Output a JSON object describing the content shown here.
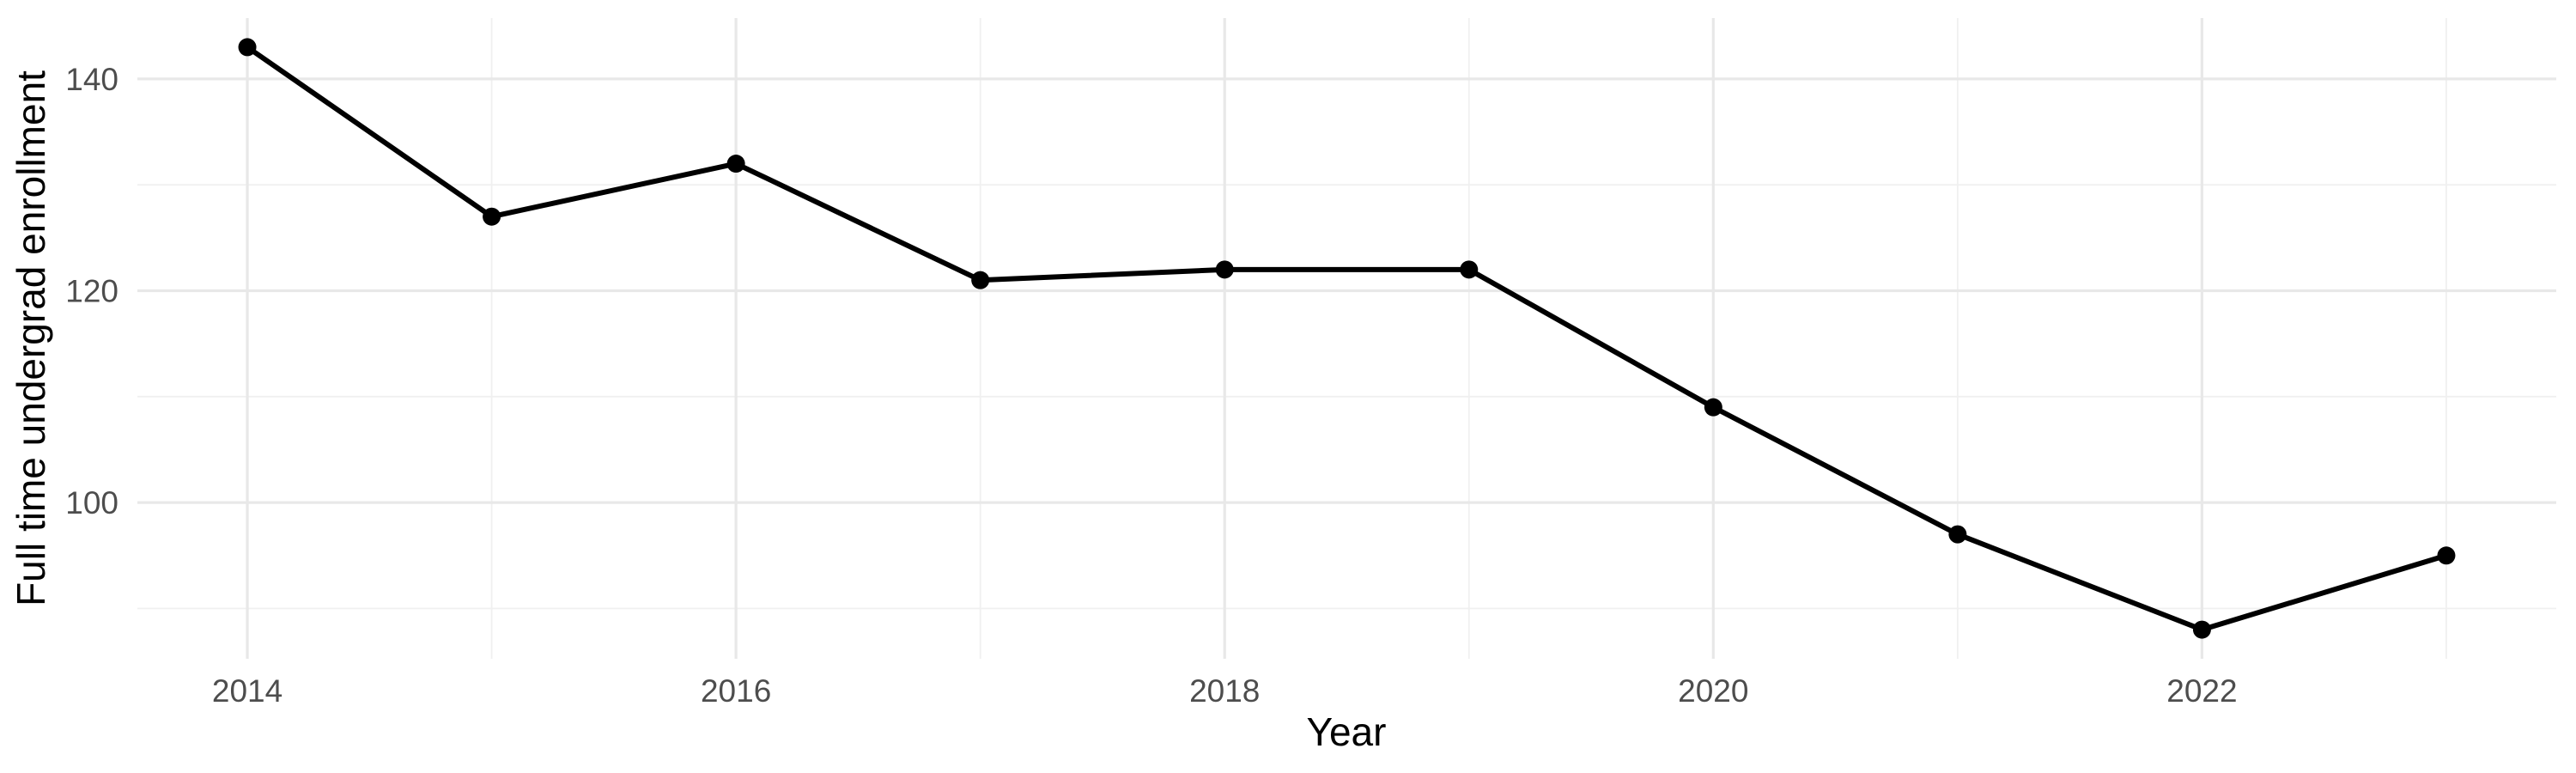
{
  "figure": {
    "background_color": "#ffffff"
  },
  "chart_data": {
    "type": "line",
    "title": "",
    "xlabel": "Year",
    "ylabel": "Full time undergrad enrollment",
    "x": [
      2014,
      2015,
      2016,
      2017,
      2018,
      2019,
      2020,
      2021,
      2022,
      2023
    ],
    "series": [
      {
        "name": "Full time undergrad enrollment",
        "values": [
          143,
          127,
          132,
          121,
          122,
          122,
          109,
          97,
          88,
          95
        ],
        "color": "#000000",
        "marker": "filled-circle"
      }
    ],
    "xlim": [
      2013.55,
      2023.45
    ],
    "ylim": [
      85.25,
      145.75
    ],
    "x_major_ticks": [
      2014,
      2016,
      2018,
      2020,
      2022
    ],
    "x_minor_gridlines": [
      2015,
      2017,
      2019,
      2021,
      2023
    ],
    "y_major_ticks": [
      100,
      120,
      140
    ],
    "y_minor_gridlines": [
      90,
      110,
      130
    ],
    "grid": "on",
    "legend": "none",
    "style": {
      "axis_text_color": "#4d4d4d",
      "axis_title_color": "#000000",
      "grid_major_color": "#e8e8e8",
      "grid_minor_color": "#f0f0f0",
      "line_color": "#000000",
      "point_color": "#000000"
    }
  }
}
